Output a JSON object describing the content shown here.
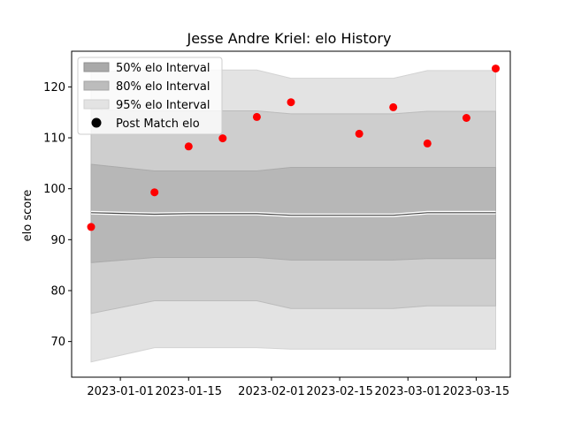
{
  "chart_data": {
    "type": "area",
    "title": "Jesse Andre Kriel: elo History",
    "xlabel": "",
    "ylabel": "elo score",
    "x_ticks": [
      "2023-01-01",
      "2023-01-15",
      "2023-02-01",
      "2023-02-15",
      "2023-03-01",
      "2023-03-15"
    ],
    "y_ticks": [
      70,
      80,
      90,
      100,
      110,
      120
    ],
    "xlim": [
      "2022-12-22",
      "2023-03-22"
    ],
    "ylim": [
      63,
      127
    ],
    "grid": false,
    "legend_position": "top-left",
    "legend": [
      "50% elo Interval",
      "80% elo Interval",
      "95% elo Interval",
      "Post Match elo"
    ],
    "bands": {
      "x": [
        "2022-12-26",
        "2023-01-08",
        "2023-01-15",
        "2023-01-29",
        "2023-02-05",
        "2023-02-26",
        "2023-03-05",
        "2023-03-19"
      ],
      "median": [
        95.3,
        95.0,
        95.1,
        95.1,
        94.8,
        94.8,
        95.3,
        95.3
      ],
      "interval_50": {
        "lower": [
          85.5,
          86.5,
          86.5,
          86.5,
          86.0,
          86.0,
          86.3,
          86.3
        ],
        "upper": [
          104.8,
          103.5,
          103.5,
          103.5,
          104.2,
          104.2,
          104.2,
          104.2
        ]
      },
      "interval_80": {
        "lower": [
          75.5,
          78.0,
          78.0,
          78.0,
          76.5,
          76.5,
          77.0,
          77.0
        ],
        "upper": [
          115.5,
          115.3,
          115.3,
          115.3,
          114.7,
          114.7,
          115.2,
          115.2
        ]
      },
      "interval_95": {
        "lower": [
          66.0,
          68.8,
          68.8,
          68.8,
          68.5,
          68.5,
          68.5,
          68.5
        ],
        "upper": [
          123.0,
          123.3,
          123.3,
          123.3,
          121.7,
          121.7,
          123.2,
          123.2
        ]
      }
    },
    "series": [
      {
        "name": "Post Match elo",
        "x": [
          "2022-12-26",
          "2023-01-08",
          "2023-01-15",
          "2023-01-22",
          "2023-01-29",
          "2023-02-05",
          "2023-02-19",
          "2023-02-26",
          "2023-03-05",
          "2023-03-13",
          "2023-03-19"
        ],
        "values": [
          92.5,
          99.3,
          108.3,
          109.9,
          114.1,
          117.0,
          110.8,
          116.0,
          108.9,
          113.9,
          123.6
        ]
      }
    ],
    "colors": {
      "interval_50": "#a9a9a9",
      "interval_80": "#bcbcbc",
      "interval_95": "#d9d9d9",
      "median": "#444444",
      "points": "#ff0000"
    }
  }
}
